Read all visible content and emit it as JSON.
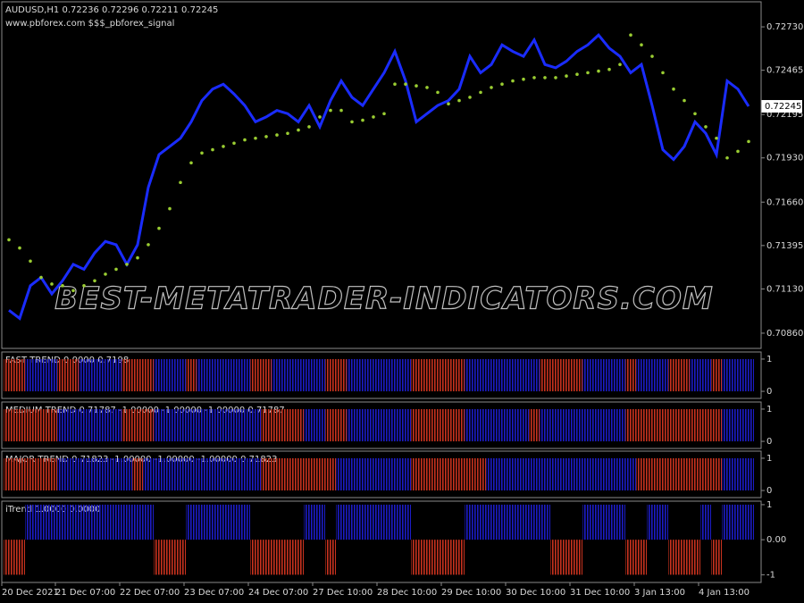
{
  "header": {
    "symbol_line": "AUDUSD,H1  0.72236 0.72296 0.72211 0.72245",
    "site": "www.pbforex.com $$$_pbforex_signal",
    "last_price": "0.72245"
  },
  "watermark": "BEST-METATRADER-INDICATORS.COM",
  "chart_data": [
    {
      "type": "line",
      "categories": [
        "20 Dec 2021",
        null,
        null,
        null,
        null,
        "21 Dec 07:00",
        null,
        null,
        null,
        null,
        null,
        "22 Dec 07:00",
        null,
        null,
        null,
        null,
        null,
        "23 Dec 07:00",
        null,
        null,
        null,
        null,
        null,
        "24 Dec 07:00",
        null,
        null,
        null,
        null,
        null,
        "27 Dec 10:00",
        null,
        null,
        null,
        null,
        null,
        "28 Dec 10:00",
        null,
        null,
        null,
        null,
        null,
        "29 Dec 10:00",
        null,
        null,
        null,
        null,
        null,
        "30 Dec 10:00",
        null,
        null,
        null,
        null,
        null,
        "31 Dec 10:00",
        null,
        null,
        null,
        null,
        null,
        "3 Jan 13:00",
        null,
        null,
        null,
        null,
        null,
        "4 Jan 13:00",
        null,
        null,
        null,
        null
      ],
      "ylim": [
        0.70767,
        0.72883
      ],
      "yticks": [
        {
          "value": 0.7273,
          "label": "0.72730"
        },
        {
          "value": 0.72465,
          "label": "0.72465"
        },
        {
          "value": 0.72195,
          "label": "0.72195"
        },
        {
          "value": 0.7193,
          "label": "0.71930"
        },
        {
          "value": 0.7166,
          "label": "0.71660"
        },
        {
          "value": 0.71395,
          "label": "0.71395"
        },
        {
          "value": 0.7113,
          "label": "0.71130"
        },
        {
          "value": 0.7086,
          "label": "0.70860"
        }
      ],
      "series": [
        {
          "color": "#1a2cff",
          "values": [
            0.71,
            0.7095,
            0.7115,
            0.712,
            0.711,
            0.7118,
            0.7128,
            0.7125,
            0.7135,
            0.7142,
            0.714,
            0.7128,
            0.714,
            0.7175,
            0.7195,
            0.72,
            0.7205,
            0.7215,
            0.7228,
            0.7235,
            0.7238,
            0.7232,
            0.7225,
            0.7215,
            0.7218,
            0.7222,
            0.722,
            0.7215,
            0.7225,
            0.7212,
            0.7228,
            0.724,
            0.723,
            0.7225,
            0.7235,
            0.7245,
            0.7258,
            0.724,
            0.7215,
            0.722,
            0.7225,
            0.7228,
            0.7235,
            0.7255,
            0.7245,
            0.725,
            0.7262,
            0.7258,
            0.7255,
            0.7265,
            0.725,
            0.7248,
            0.7252,
            0.7258,
            0.7262,
            0.7268,
            0.726,
            0.7255,
            0.7245,
            0.725,
            0.7225,
            0.7198,
            0.7192,
            0.72,
            0.7215,
            0.7208,
            0.7195,
            0.724,
            0.7235,
            0.72245
          ]
        },
        {
          "color": "#9acd32",
          "values": [
            0.7143,
            0.7138,
            0.713,
            0.712,
            0.7116,
            0.7115,
            0.7112,
            0.7115,
            0.7118,
            0.7122,
            0.7125,
            0.7128,
            0.7132,
            0.714,
            0.715,
            0.7162,
            0.7178,
            0.719,
            0.7196,
            0.7198,
            0.72,
            0.7202,
            0.7204,
            0.7205,
            0.7206,
            0.7207,
            0.7208,
            0.721,
            0.7212,
            0.7218,
            0.7222,
            0.7222,
            0.7215,
            0.7216,
            0.7218,
            0.722,
            0.7238,
            0.7238,
            0.7237,
            0.7236,
            0.7233,
            0.7226,
            0.7228,
            0.723,
            0.7233,
            0.7236,
            0.7238,
            0.724,
            0.7241,
            0.7242,
            0.7242,
            0.7242,
            0.7243,
            0.7244,
            0.7245,
            0.7246,
            0.7247,
            0.725,
            0.7268,
            0.7262,
            0.7255,
            0.7245,
            0.7235,
            0.7228,
            0.722,
            0.7212,
            0.7205,
            0.7193,
            0.7197,
            0.7203
          ]
        }
      ]
    },
    {
      "type": "bar",
      "title": "FAST TREND 0.0000 0.7198",
      "ylim": [
        -0.22,
        1.22
      ],
      "yticks": [
        1,
        0
      ],
      "series": [
        {
          "color": "#1c1cc8",
          "values": [
            null,
            null,
            1,
            1,
            1,
            null,
            null,
            1,
            1,
            1,
            1,
            null,
            null,
            null,
            1,
            1,
            1,
            null,
            1,
            1,
            1,
            1,
            1,
            null,
            null,
            1,
            1,
            1,
            1,
            1,
            null,
            null,
            1,
            1,
            1,
            1,
            1,
            1,
            null,
            null,
            null,
            null,
            null,
            1,
            1,
            1,
            1,
            1,
            1,
            1,
            null,
            null,
            null,
            null,
            1,
            1,
            1,
            1,
            null,
            1,
            1,
            1,
            null,
            null,
            1,
            1,
            null,
            1,
            1,
            1
          ]
        },
        {
          "color": "#c8321e",
          "values": [
            1,
            1,
            null,
            null,
            null,
            1,
            1,
            null,
            null,
            null,
            null,
            1,
            1,
            1,
            null,
            null,
            null,
            1,
            null,
            null,
            null,
            null,
            null,
            1,
            1,
            null,
            null,
            null,
            null,
            null,
            1,
            1,
            null,
            null,
            null,
            null,
            null,
            null,
            1,
            1,
            1,
            1,
            1,
            null,
            null,
            null,
            null,
            null,
            null,
            null,
            1,
            1,
            1,
            1,
            null,
            null,
            null,
            null,
            1,
            null,
            null,
            null,
            1,
            1,
            null,
            null,
            1,
            null,
            null,
            null
          ]
        }
      ]
    },
    {
      "type": "bar",
      "title": "MEDIUM TREND 0.71787 -1.00000 -1.00000 -1.00000 0.71787",
      "ylim": [
        -0.22,
        1.22
      ],
      "yticks": [
        1,
        0
      ],
      "series": [
        {
          "color": "#1c1cc8",
          "values": [
            null,
            null,
            null,
            null,
            null,
            1,
            1,
            1,
            1,
            1,
            1,
            null,
            null,
            null,
            1,
            1,
            1,
            1,
            1,
            1,
            1,
            1,
            1,
            1,
            null,
            null,
            null,
            null,
            1,
            1,
            null,
            null,
            1,
            1,
            1,
            1,
            1,
            1,
            null,
            null,
            null,
            null,
            null,
            1,
            1,
            1,
            1,
            1,
            1,
            null,
            1,
            1,
            1,
            1,
            1,
            1,
            1,
            1,
            null,
            null,
            null,
            null,
            null,
            null,
            null,
            null,
            null,
            1,
            1,
            1
          ]
        },
        {
          "color": "#c8321e",
          "values": [
            1,
            1,
            1,
            1,
            1,
            null,
            null,
            null,
            null,
            null,
            null,
            1,
            1,
            1,
            null,
            null,
            null,
            null,
            null,
            null,
            null,
            null,
            null,
            null,
            1,
            1,
            1,
            1,
            null,
            null,
            1,
            1,
            null,
            null,
            null,
            null,
            null,
            null,
            1,
            1,
            1,
            1,
            1,
            null,
            null,
            null,
            null,
            null,
            null,
            1,
            null,
            null,
            null,
            null,
            null,
            null,
            null,
            null,
            1,
            1,
            1,
            1,
            1,
            1,
            1,
            1,
            1,
            null,
            null,
            null
          ]
        }
      ]
    },
    {
      "type": "bar",
      "title": "MAJOR TREND 0.71823 -1.00000 -1.00000 -1.00000 0.71823",
      "ylim": [
        -0.22,
        1.22
      ],
      "yticks": [
        1,
        0
      ],
      "series": [
        {
          "color": "#1c1cc8",
          "values": [
            null,
            null,
            null,
            null,
            null,
            1,
            1,
            1,
            1,
            1,
            1,
            1,
            null,
            1,
            1,
            1,
            1,
            1,
            1,
            1,
            1,
            1,
            1,
            1,
            null,
            null,
            null,
            null,
            null,
            null,
            null,
            1,
            1,
            1,
            1,
            1,
            1,
            1,
            null,
            null,
            null,
            null,
            null,
            null,
            null,
            1,
            1,
            1,
            1,
            1,
            1,
            1,
            1,
            1,
            1,
            1,
            1,
            1,
            1,
            null,
            null,
            null,
            null,
            null,
            null,
            null,
            null,
            1,
            1,
            1
          ]
        },
        {
          "color": "#c8321e",
          "values": [
            1,
            1,
            1,
            1,
            1,
            null,
            null,
            null,
            null,
            null,
            null,
            null,
            1,
            null,
            null,
            null,
            null,
            null,
            null,
            null,
            null,
            null,
            null,
            null,
            1,
            1,
            1,
            1,
            1,
            1,
            1,
            null,
            null,
            null,
            null,
            null,
            null,
            null,
            1,
            1,
            1,
            1,
            1,
            1,
            1,
            null,
            null,
            null,
            null,
            null,
            null,
            null,
            null,
            null,
            null,
            null,
            null,
            null,
            null,
            1,
            1,
            1,
            1,
            1,
            1,
            1,
            1,
            null,
            null,
            null
          ]
        }
      ]
    },
    {
      "type": "bar",
      "title": "iTrend 1.0000 0.0000",
      "ylim": [
        -1.22,
        1.1
      ],
      "yticks": [
        1,
        {
          "value": 0,
          "label": "0.00"
        },
        -1
      ],
      "series": [
        {
          "color": "#1c1cc8",
          "values": [
            null,
            null,
            1,
            1,
            1,
            1,
            1,
            1,
            1,
            1,
            1,
            1,
            1,
            1,
            null,
            null,
            null,
            1,
            1,
            1,
            1,
            1,
            1,
            null,
            null,
            null,
            null,
            null,
            1,
            1,
            null,
            1,
            1,
            1,
            1,
            1,
            1,
            1,
            null,
            null,
            null,
            null,
            null,
            1,
            1,
            1,
            1,
            1,
            1,
            1,
            1,
            null,
            null,
            null,
            1,
            1,
            1,
            1,
            null,
            null,
            1,
            1,
            null,
            null,
            null,
            1,
            null,
            1,
            1,
            1
          ]
        },
        {
          "color": "#c8321e",
          "values": [
            -1,
            -1,
            null,
            null,
            null,
            null,
            null,
            null,
            null,
            null,
            null,
            null,
            null,
            null,
            -1,
            -1,
            -1,
            null,
            null,
            null,
            null,
            null,
            null,
            -1,
            -1,
            -1,
            -1,
            -1,
            null,
            null,
            -1,
            null,
            null,
            null,
            null,
            null,
            null,
            null,
            -1,
            -1,
            -1,
            -1,
            -1,
            null,
            null,
            null,
            null,
            null,
            null,
            null,
            null,
            -1,
            -1,
            -1,
            null,
            null,
            null,
            null,
            -1,
            -1,
            null,
            null,
            -1,
            -1,
            -1,
            null,
            -1,
            null,
            null,
            null
          ]
        }
      ]
    }
  ]
}
